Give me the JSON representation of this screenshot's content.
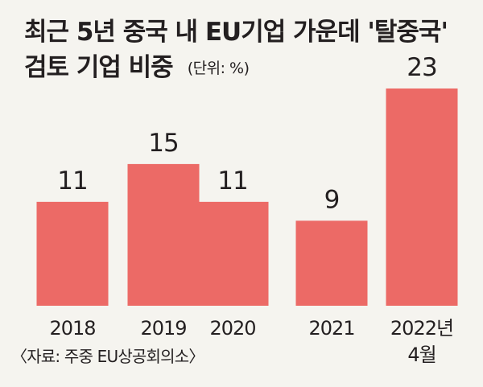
{
  "title_line1": "최근 5년 중국 내 EU기업 가운데 '탈중국'",
  "title_line2": "검토 기업 비중",
  "unit": "(단위: %)",
  "source": "〈자료: 주중 EU상공회의소〉",
  "colors": {
    "bar": "#ec6a66",
    "text": "#231f20",
    "background": "#f5f4ef"
  },
  "chart_data": {
    "type": "bar",
    "categories": [
      "2018",
      "2019",
      "2020",
      "2021",
      "2022년\n4월"
    ],
    "values": [
      11,
      15,
      11,
      9,
      23
    ],
    "data_labels": [
      "11",
      "15",
      "11",
      "9",
      "23"
    ],
    "title": "최근 5년 중국 내 EU기업 가운데 '탈중국' 검토 기업 비중",
    "xlabel": "",
    "ylabel": "",
    "grid": false,
    "legend": "none"
  }
}
